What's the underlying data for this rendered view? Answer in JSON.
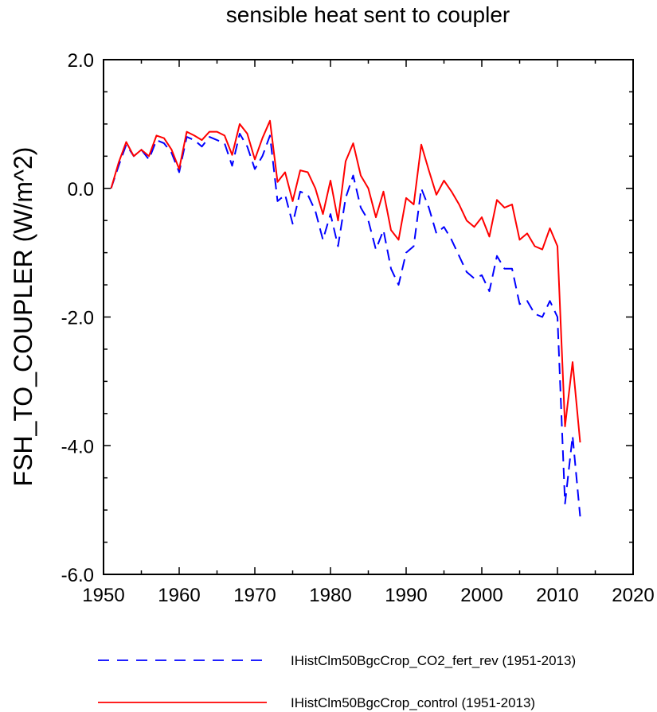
{
  "chart_data": {
    "type": "line",
    "title": "sensible heat sent to coupler",
    "xlabel": "",
    "ylabel": "FSH_TO_COUPLER  (W/m^2)",
    "xlim": [
      1950,
      2020
    ],
    "ylim": [
      -6.0,
      2.0
    ],
    "xticks": [
      1950,
      1960,
      1970,
      1980,
      1990,
      2000,
      2010,
      2020
    ],
    "xtick_labels": [
      "1950",
      "1960",
      "1970",
      "1980",
      "1990",
      "2000",
      "2010",
      "2020"
    ],
    "yticks": [
      -6.0,
      -4.0,
      -2.0,
      0.0,
      2.0
    ],
    "ytick_labels": [
      "-6.0",
      "-4.0",
      "-2.0",
      "0.0",
      "2.0"
    ],
    "grid": false,
    "legend_position": "bottom",
    "x": [
      1951,
      1952,
      1953,
      1954,
      1955,
      1956,
      1957,
      1958,
      1959,
      1960,
      1961,
      1962,
      1963,
      1964,
      1965,
      1966,
      1967,
      1968,
      1969,
      1970,
      1971,
      1972,
      1973,
      1974,
      1975,
      1976,
      1977,
      1978,
      1979,
      1980,
      1981,
      1982,
      1983,
      1984,
      1985,
      1986,
      1987,
      1988,
      1989,
      1990,
      1991,
      1992,
      1993,
      1994,
      1995,
      1996,
      1997,
      1998,
      1999,
      2000,
      2001,
      2002,
      2003,
      2004,
      2005,
      2006,
      2007,
      2008,
      2009,
      2010,
      2011,
      2012,
      2013
    ],
    "series": [
      {
        "name": "IHistClm50BgcCrop_CO2_fert_rev (1951-2013)",
        "color": "#0000ff",
        "dash": "dashed",
        "values": [
          0.0,
          0.35,
          0.68,
          0.5,
          0.6,
          0.45,
          0.75,
          0.7,
          0.55,
          0.25,
          0.8,
          0.75,
          0.65,
          0.8,
          0.75,
          0.7,
          0.35,
          0.85,
          0.65,
          0.3,
          0.5,
          0.82,
          -0.2,
          -0.1,
          -0.55,
          -0.05,
          -0.1,
          -0.35,
          -0.8,
          -0.4,
          -0.9,
          -0.15,
          0.2,
          -0.3,
          -0.5,
          -0.95,
          -0.65,
          -1.25,
          -1.5,
          -1.0,
          -0.9,
          0.0,
          -0.3,
          -0.7,
          -0.6,
          -0.8,
          -1.05,
          -1.3,
          -1.4,
          -1.35,
          -1.6,
          -1.05,
          -1.25,
          -1.25,
          -1.8,
          -1.75,
          -1.95,
          -2.0,
          -1.75,
          -2.0,
          -4.9,
          -3.85,
          -5.1
        ]
      },
      {
        "name": "IHistClm50BgcCrop_control (1951-2013)",
        "color": "#ff0000",
        "dash": "solid",
        "values": [
          0.0,
          0.4,
          0.72,
          0.5,
          0.6,
          0.5,
          0.82,
          0.78,
          0.6,
          0.3,
          0.88,
          0.82,
          0.75,
          0.88,
          0.88,
          0.82,
          0.52,
          1.0,
          0.85,
          0.45,
          0.78,
          1.05,
          0.1,
          0.25,
          -0.2,
          0.28,
          0.25,
          0.0,
          -0.4,
          0.12,
          -0.5,
          0.42,
          0.7,
          0.2,
          0.0,
          -0.45,
          -0.05,
          -0.65,
          -0.8,
          -0.15,
          -0.25,
          0.68,
          0.28,
          -0.1,
          0.12,
          -0.05,
          -0.25,
          -0.5,
          -0.6,
          -0.45,
          -0.75,
          -0.18,
          -0.3,
          -0.25,
          -0.8,
          -0.7,
          -0.9,
          -0.95,
          -0.62,
          -0.9,
          -3.7,
          -2.7,
          -3.95
        ]
      }
    ]
  }
}
